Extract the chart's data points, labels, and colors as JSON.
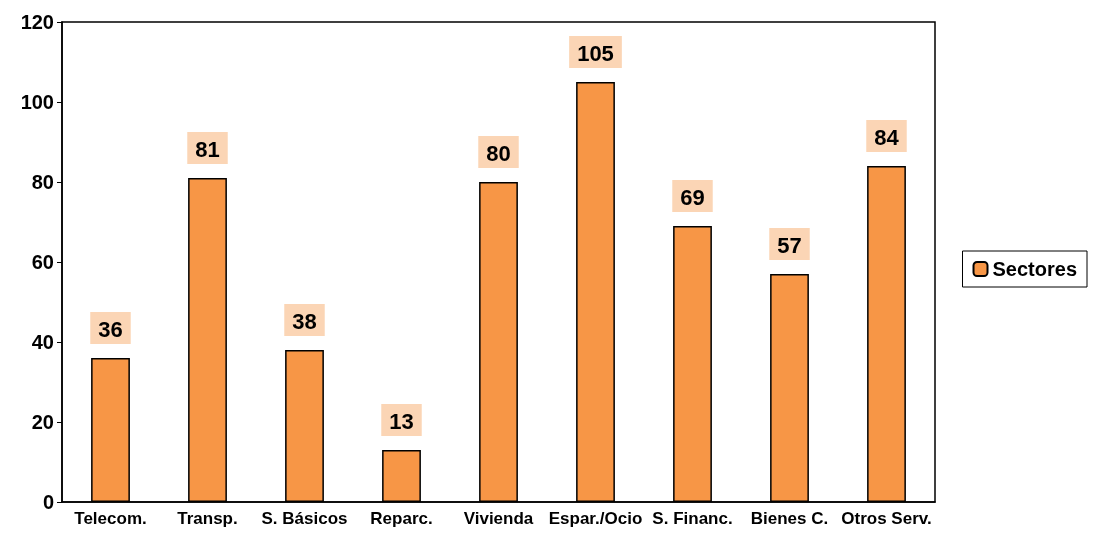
{
  "chart_data": {
    "type": "bar",
    "categories": [
      "Telecom.",
      "Transp.",
      "S. Básicos",
      "Reparc.",
      "Vivienda",
      "Espar./Ocio",
      "S. Financ.",
      "Bienes C.",
      "Otros Serv."
    ],
    "series": [
      {
        "name": "Sectores",
        "color": "#f79646",
        "values": [
          36,
          81,
          38,
          13,
          80,
          105,
          69,
          57,
          84
        ]
      }
    ],
    "ylim": [
      0,
      120
    ],
    "yticks": [
      0,
      20,
      40,
      60,
      80,
      100,
      120
    ],
    "grid": false,
    "legend": "right",
    "data_labels": true
  }
}
